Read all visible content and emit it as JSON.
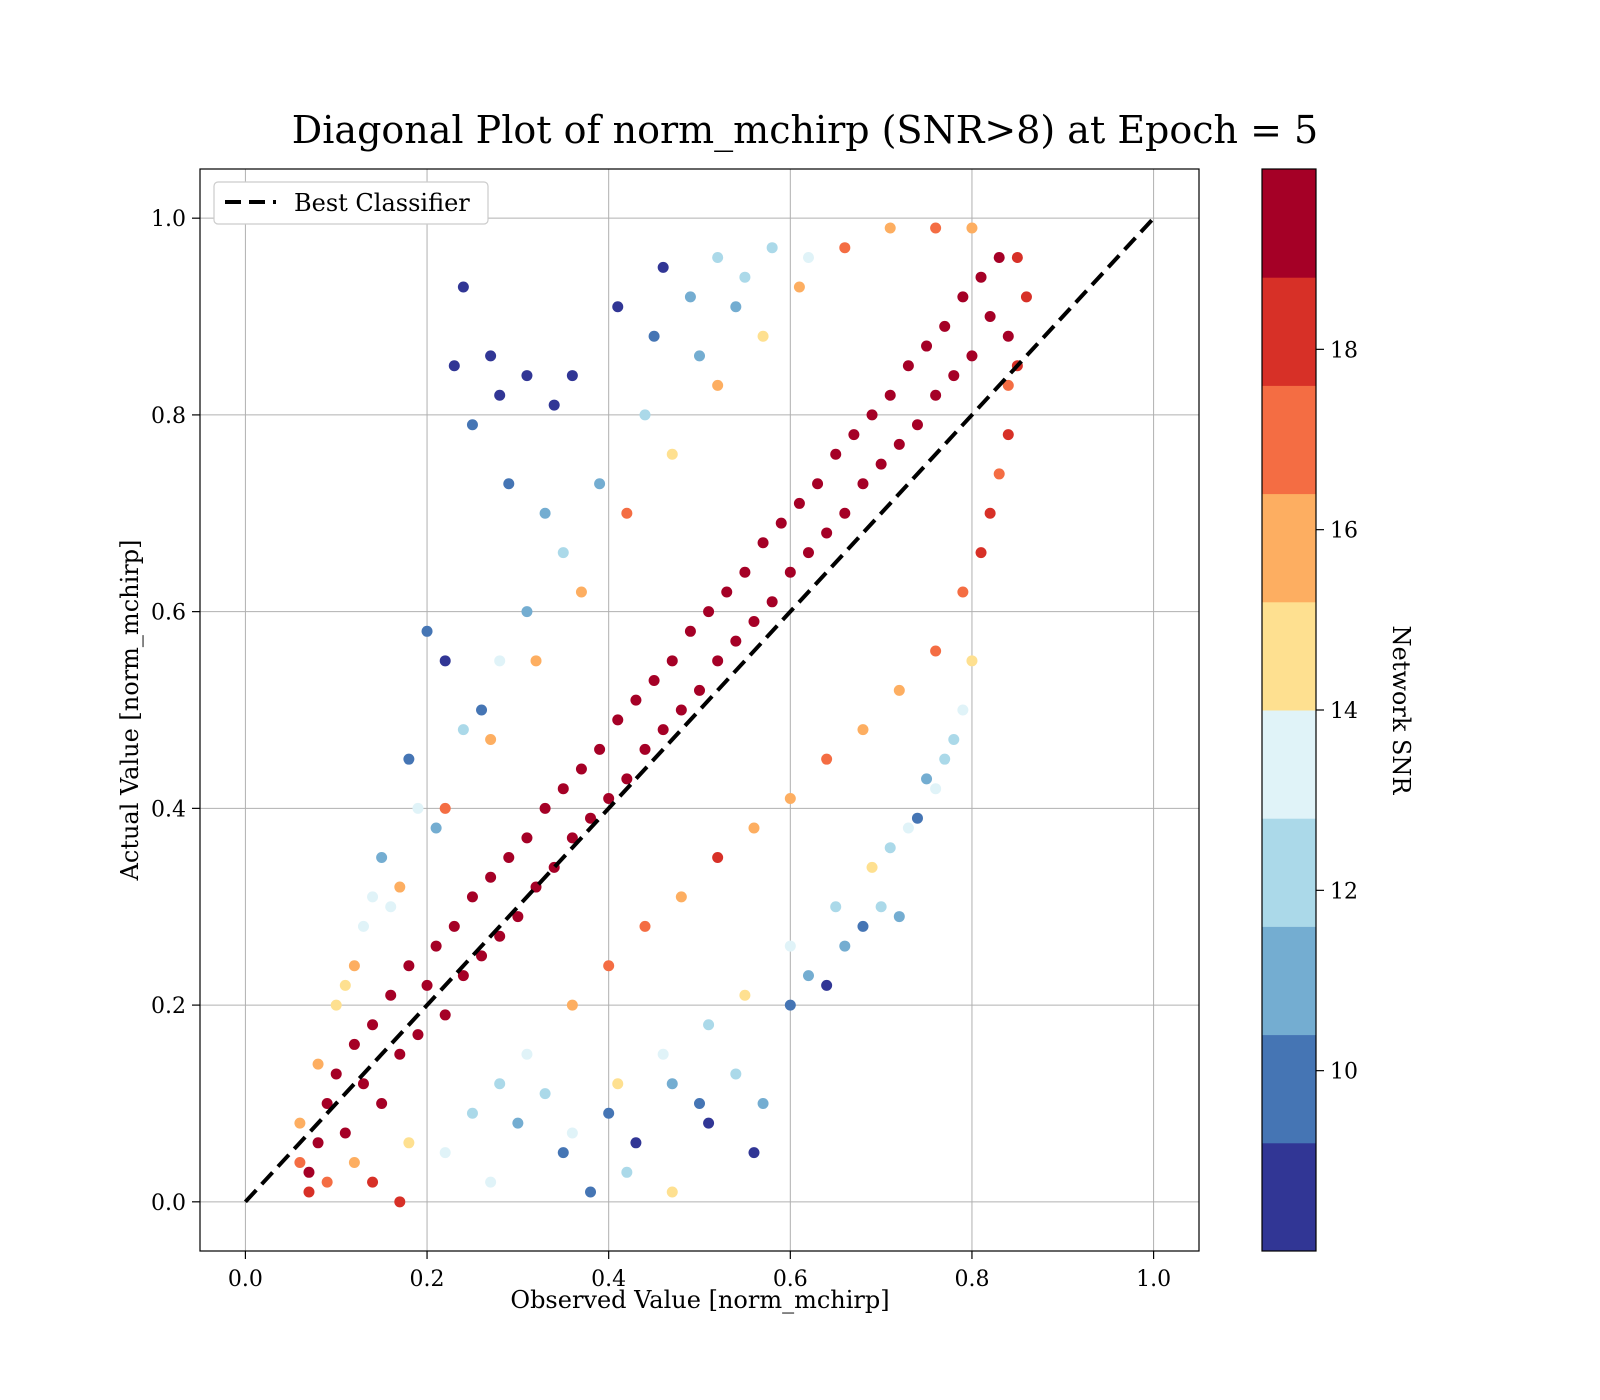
{
  "chart_data": {
    "type": "scatter",
    "title": "Diagonal Plot of norm_mchirp (SNR>8) at Epoch = 5",
    "xlabel": "Observed Value [norm_mchirp]",
    "ylabel": "Actual Value [norm_mchirp]",
    "xlim": [
      -0.05,
      1.05
    ],
    "ylim": [
      -0.05,
      1.05
    ],
    "x_ticks": [
      "0.0",
      "0.2",
      "0.4",
      "0.6",
      "0.8",
      "1.0"
    ],
    "y_ticks": [
      "0.0",
      "0.2",
      "0.4",
      "0.6",
      "0.8",
      "1.0"
    ],
    "grid": true,
    "legend": {
      "position": "top-left",
      "entries": [
        "Best Classifier"
      ]
    },
    "reference_line": {
      "name": "Best Classifier",
      "x": [
        0.0,
        1.0
      ],
      "y": [
        0.0,
        1.0
      ],
      "style": "dashed",
      "color": "#000000"
    },
    "colorbar": {
      "label": "Network SNR",
      "range": [
        8,
        20
      ],
      "ticks": [
        "10",
        "12",
        "14",
        "16",
        "18"
      ],
      "colormap": "RdYlBu_r",
      "colors": [
        "#313695",
        "#4575b4",
        "#74add1",
        "#abd9e9",
        "#e0f3f8",
        "#fee090",
        "#fdae61",
        "#f46d43",
        "#d73027",
        "#a50026"
      ]
    },
    "points_description": "Dense cloud of points along the diagonal; high-SNR (dark red) points concentrate near y=x, low-SNR (blue) points scatter farther from the diagonal.",
    "series": [
      {
        "color_by": "snr",
        "points": [
          [
            0.07,
            0.03,
            19.5
          ],
          [
            0.08,
            0.06,
            19.6
          ],
          [
            0.09,
            0.1,
            19.4
          ],
          [
            0.1,
            0.13,
            19.7
          ],
          [
            0.11,
            0.07,
            19.5
          ],
          [
            0.12,
            0.16,
            19.3
          ],
          [
            0.13,
            0.12,
            19.8
          ],
          [
            0.14,
            0.18,
            19.5
          ],
          [
            0.15,
            0.1,
            19.6
          ],
          [
            0.16,
            0.21,
            19.2
          ],
          [
            0.17,
            0.15,
            19.7
          ],
          [
            0.18,
            0.24,
            19.4
          ],
          [
            0.19,
            0.17,
            19.6
          ],
          [
            0.2,
            0.22,
            19.5
          ],
          [
            0.21,
            0.26,
            19.3
          ],
          [
            0.22,
            0.19,
            19.8
          ],
          [
            0.23,
            0.28,
            19.5
          ],
          [
            0.24,
            0.23,
            19.6
          ],
          [
            0.25,
            0.31,
            19.4
          ],
          [
            0.26,
            0.25,
            19.7
          ],
          [
            0.27,
            0.33,
            19.5
          ],
          [
            0.28,
            0.27,
            19.3
          ],
          [
            0.29,
            0.35,
            19.6
          ],
          [
            0.3,
            0.29,
            19.8
          ],
          [
            0.31,
            0.37,
            19.5
          ],
          [
            0.32,
            0.32,
            19.4
          ],
          [
            0.33,
            0.4,
            19.6
          ],
          [
            0.34,
            0.34,
            19.7
          ],
          [
            0.35,
            0.42,
            19.5
          ],
          [
            0.36,
            0.37,
            19.3
          ],
          [
            0.37,
            0.44,
            19.6
          ],
          [
            0.38,
            0.39,
            19.8
          ],
          [
            0.39,
            0.46,
            19.5
          ],
          [
            0.4,
            0.41,
            19.4
          ],
          [
            0.41,
            0.49,
            19.6
          ],
          [
            0.42,
            0.43,
            19.7
          ],
          [
            0.43,
            0.51,
            19.5
          ],
          [
            0.44,
            0.46,
            19.3
          ],
          [
            0.45,
            0.53,
            19.6
          ],
          [
            0.46,
            0.48,
            19.8
          ],
          [
            0.47,
            0.55,
            19.5
          ],
          [
            0.48,
            0.5,
            19.4
          ],
          [
            0.49,
            0.58,
            19.6
          ],
          [
            0.5,
            0.52,
            19.7
          ],
          [
            0.51,
            0.6,
            19.5
          ],
          [
            0.52,
            0.55,
            19.3
          ],
          [
            0.53,
            0.62,
            19.6
          ],
          [
            0.54,
            0.57,
            19.8
          ],
          [
            0.55,
            0.64,
            19.5
          ],
          [
            0.56,
            0.59,
            19.4
          ],
          [
            0.57,
            0.67,
            19.6
          ],
          [
            0.58,
            0.61,
            19.7
          ],
          [
            0.59,
            0.69,
            19.5
          ],
          [
            0.6,
            0.64,
            19.3
          ],
          [
            0.61,
            0.71,
            19.6
          ],
          [
            0.62,
            0.66,
            19.8
          ],
          [
            0.63,
            0.73,
            19.5
          ],
          [
            0.64,
            0.68,
            19.4
          ],
          [
            0.65,
            0.76,
            19.6
          ],
          [
            0.66,
            0.7,
            19.7
          ],
          [
            0.67,
            0.78,
            19.5
          ],
          [
            0.68,
            0.73,
            19.3
          ],
          [
            0.69,
            0.8,
            19.6
          ],
          [
            0.7,
            0.75,
            19.8
          ],
          [
            0.71,
            0.82,
            19.5
          ],
          [
            0.72,
            0.77,
            19.4
          ],
          [
            0.73,
            0.85,
            19.6
          ],
          [
            0.74,
            0.79,
            19.7
          ],
          [
            0.75,
            0.87,
            19.5
          ],
          [
            0.76,
            0.82,
            19.3
          ],
          [
            0.77,
            0.89,
            19.6
          ],
          [
            0.78,
            0.84,
            19.8
          ],
          [
            0.79,
            0.92,
            19.5
          ],
          [
            0.8,
            0.86,
            19.4
          ],
          [
            0.81,
            0.94,
            19.6
          ],
          [
            0.82,
            0.9,
            19.5
          ],
          [
            0.83,
            0.96,
            19.4
          ],
          [
            0.84,
            0.88,
            19.6
          ],
          [
            0.11,
            0.22,
            14.5
          ],
          [
            0.16,
            0.3,
            13.0
          ],
          [
            0.21,
            0.38,
            11.5
          ],
          [
            0.26,
            0.5,
            10.0
          ],
          [
            0.24,
            0.93,
            8.5
          ],
          [
            0.23,
            0.85,
            9.0
          ],
          [
            0.27,
            0.86,
            8.8
          ],
          [
            0.31,
            0.84,
            9.2
          ],
          [
            0.28,
            0.82,
            8.6
          ],
          [
            0.29,
            0.73,
            9.5
          ],
          [
            0.34,
            0.81,
            8.9
          ],
          [
            0.36,
            0.84,
            9.1
          ],
          [
            0.33,
            0.7,
            10.5
          ],
          [
            0.25,
            0.79,
            9.3
          ],
          [
            0.41,
            0.91,
            9.0
          ],
          [
            0.46,
            0.95,
            8.7
          ],
          [
            0.45,
            0.88,
            10.2
          ],
          [
            0.49,
            0.92,
            11.0
          ],
          [
            0.52,
            0.96,
            12.5
          ],
          [
            0.55,
            0.94,
            11.8
          ],
          [
            0.2,
            0.58,
            9.4
          ],
          [
            0.22,
            0.55,
            8.9
          ],
          [
            0.18,
            0.45,
            10.1
          ],
          [
            0.15,
            0.35,
            11.4
          ],
          [
            0.13,
            0.28,
            12.8
          ],
          [
            0.3,
            0.08,
            11.5
          ],
          [
            0.35,
            0.05,
            10.3
          ],
          [
            0.33,
            0.11,
            12.2
          ],
          [
            0.4,
            0.09,
            9.6
          ],
          [
            0.43,
            0.06,
            8.8
          ],
          [
            0.47,
            0.12,
            10.9
          ],
          [
            0.5,
            0.1,
            9.4
          ],
          [
            0.51,
            0.08,
            8.7
          ],
          [
            0.54,
            0.13,
            11.7
          ],
          [
            0.57,
            0.1,
            10.4
          ],
          [
            0.56,
            0.05,
            9.0
          ],
          [
            0.6,
            0.2,
            9.8
          ],
          [
            0.62,
            0.23,
            10.6
          ],
          [
            0.64,
            0.22,
            8.9
          ],
          [
            0.66,
            0.26,
            11.2
          ],
          [
            0.68,
            0.28,
            9.5
          ],
          [
            0.7,
            0.3,
            12.1
          ],
          [
            0.72,
            0.29,
            11.0
          ],
          [
            0.74,
            0.39,
            9.6
          ],
          [
            0.76,
            0.42,
            12.8
          ],
          [
            0.38,
            0.01,
            9.3
          ],
          [
            0.42,
            0.03,
            12.0
          ],
          [
            0.47,
            0.01,
            15.0
          ],
          [
            0.27,
            0.02,
            13.4
          ],
          [
            0.17,
            0.0,
            18.2
          ],
          [
            0.06,
            0.04,
            17.5
          ],
          [
            0.07,
            0.01,
            18.3
          ],
          [
            0.09,
            0.02,
            16.8
          ],
          [
            0.12,
            0.04,
            15.6
          ],
          [
            0.14,
            0.02,
            17.9
          ],
          [
            0.18,
            0.06,
            14.6
          ],
          [
            0.22,
            0.05,
            13.2
          ],
          [
            0.25,
            0.09,
            12.4
          ],
          [
            0.28,
            0.12,
            11.8
          ],
          [
            0.31,
            0.15,
            13.9
          ],
          [
            0.36,
            0.2,
            16.2
          ],
          [
            0.4,
            0.24,
            17.1
          ],
          [
            0.44,
            0.28,
            16.7
          ],
          [
            0.48,
            0.31,
            15.4
          ],
          [
            0.52,
            0.35,
            17.6
          ],
          [
            0.56,
            0.38,
            16.3
          ],
          [
            0.6,
            0.41,
            15.8
          ],
          [
            0.64,
            0.45,
            17.2
          ],
          [
            0.68,
            0.48,
            16.1
          ],
          [
            0.72,
            0.52,
            15.3
          ],
          [
            0.76,
            0.56,
            17.4
          ],
          [
            0.79,
            0.62,
            16.5
          ],
          [
            0.82,
            0.7,
            18.1
          ],
          [
            0.84,
            0.78,
            17.7
          ],
          [
            0.85,
            0.85,
            18.4
          ],
          [
            0.86,
            0.92,
            17.9
          ],
          [
            0.85,
            0.96,
            18.6
          ],
          [
            0.84,
            0.83,
            17.0
          ],
          [
            0.83,
            0.74,
            16.9
          ],
          [
            0.81,
            0.66,
            17.8
          ],
          [
            0.12,
            0.24,
            16.0
          ],
          [
            0.17,
            0.32,
            15.2
          ],
          [
            0.22,
            0.4,
            16.6
          ],
          [
            0.27,
            0.47,
            15.9
          ],
          [
            0.32,
            0.55,
            16.4
          ],
          [
            0.37,
            0.62,
            15.5
          ],
          [
            0.42,
            0.7,
            16.8
          ],
          [
            0.47,
            0.76,
            15.1
          ],
          [
            0.52,
            0.83,
            16.2
          ],
          [
            0.57,
            0.88,
            14.8
          ],
          [
            0.61,
            0.93,
            15.7
          ],
          [
            0.66,
            0.97,
            16.9
          ],
          [
            0.71,
            0.99,
            15.3
          ],
          [
            0.76,
            0.99,
            17.3
          ],
          [
            0.8,
            0.99,
            16.0
          ],
          [
            0.58,
            0.97,
            12.6
          ],
          [
            0.62,
            0.96,
            13.7
          ],
          [
            0.54,
            0.91,
            11.3
          ],
          [
            0.5,
            0.86,
            10.8
          ],
          [
            0.44,
            0.8,
            12.3
          ],
          [
            0.39,
            0.73,
            11.1
          ],
          [
            0.35,
            0.66,
            12.7
          ],
          [
            0.31,
            0.6,
            10.6
          ],
          [
            0.28,
            0.55,
            13.3
          ],
          [
            0.24,
            0.48,
            11.9
          ],
          [
            0.19,
            0.4,
            12.9
          ],
          [
            0.14,
            0.31,
            13.6
          ],
          [
            0.1,
            0.2,
            14.2
          ],
          [
            0.08,
            0.14,
            15.3
          ],
          [
            0.06,
            0.08,
            16.1
          ],
          [
            0.36,
            0.07,
            13.8
          ],
          [
            0.41,
            0.12,
            14.4
          ],
          [
            0.46,
            0.15,
            13.1
          ],
          [
            0.51,
            0.18,
            12.5
          ],
          [
            0.55,
            0.21,
            14.7
          ],
          [
            0.6,
            0.26,
            13.5
          ],
          [
            0.65,
            0.3,
            12.3
          ],
          [
            0.69,
            0.34,
            14.1
          ],
          [
            0.73,
            0.38,
            13.0
          ],
          [
            0.77,
            0.45,
            12.6
          ],
          [
            0.79,
            0.5,
            13.9
          ],
          [
            0.8,
            0.55,
            14.3
          ],
          [
            0.78,
            0.47,
            11.6
          ],
          [
            0.75,
            0.43,
            10.7
          ],
          [
            0.71,
            0.36,
            11.9
          ]
        ]
      }
    ]
  }
}
